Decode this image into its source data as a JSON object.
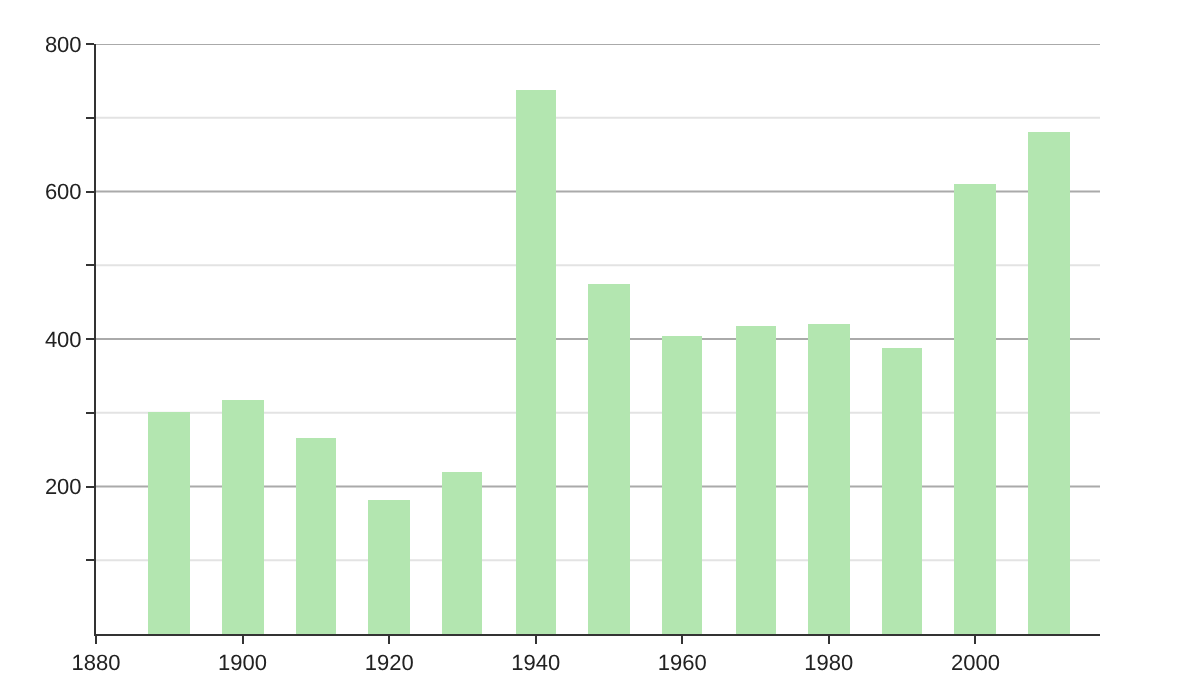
{
  "chart_data": {
    "type": "bar",
    "x": [
      1890,
      1900,
      1910,
      1920,
      1930,
      1940,
      1950,
      1960,
      1970,
      1980,
      1990,
      2000,
      2010
    ],
    "values": [
      301,
      318,
      265,
      182,
      221,
      738,
      475,
      404,
      417,
      420,
      387,
      611,
      680
    ],
    "color": "#b3e6b0",
    "xlim": [
      1880,
      2017
    ],
    "xticks": [
      1880,
      1900,
      1920,
      1940,
      1960,
      1980,
      2000
    ],
    "ylim": [
      0,
      800
    ],
    "yticks": [
      {
        "value": 100,
        "label": null
      },
      200,
      {
        "value": 300,
        "label": null
      },
      400,
      {
        "value": 500,
        "label": null
      },
      600,
      {
        "value": 700,
        "label": null
      },
      800
    ],
    "grid": "y",
    "legend": false
  }
}
